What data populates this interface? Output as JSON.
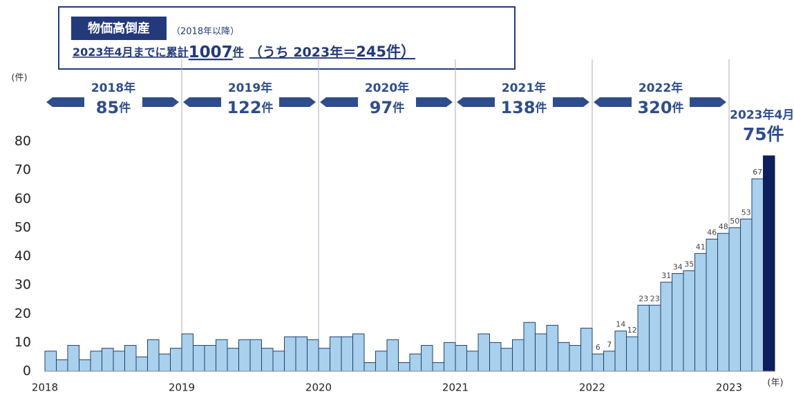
{
  "chart_data": {
    "type": "bar",
    "header": {
      "badge": "物価高倒産",
      "note": "（2018年以降）",
      "summary": [
        "2023年4月までに累計",
        "1007",
        "件",
        "（うち 2023年＝",
        "245件）"
      ]
    },
    "y_unit": "(件)",
    "x_unit": "(年)",
    "categories": [
      null,
      null,
      null,
      null,
      null,
      null,
      null,
      null,
      null,
      null,
      null,
      null,
      null,
      null,
      null,
      null,
      null,
      null,
      null,
      null,
      null,
      null,
      null,
      null,
      null,
      null,
      null,
      null,
      null,
      null,
      null,
      null,
      null,
      null,
      null,
      null,
      null,
      null,
      null,
      null,
      null,
      null,
      null,
      null,
      null,
      null,
      null,
      null,
      null,
      null,
      null,
      null,
      null,
      null,
      null,
      null,
      null,
      null,
      null,
      null,
      null,
      null,
      null,
      null
    ],
    "series": [
      {
        "color": "#a9d0ec",
        "highlight_color": "#0d1f5c",
        "values": [
          7,
          4,
          9,
          4,
          7,
          8,
          7,
          9,
          5,
          11,
          6,
          8,
          13,
          9,
          9,
          11,
          8,
          11,
          11,
          8,
          7,
          12,
          12,
          11,
          8,
          12,
          12,
          13,
          3,
          7,
          11,
          3,
          6,
          9,
          3,
          10,
          9,
          7,
          13,
          10,
          8,
          11,
          17,
          13,
          16,
          10,
          9,
          15,
          6,
          7,
          14,
          12,
          23,
          23,
          31,
          34,
          35,
          41,
          46,
          48,
          50,
          53,
          67,
          75
        ],
        "value_labels": [
          null,
          null,
          null,
          null,
          null,
          null,
          null,
          null,
          null,
          null,
          null,
          null,
          null,
          null,
          null,
          null,
          null,
          null,
          null,
          null,
          null,
          null,
          null,
          null,
          null,
          null,
          null,
          null,
          null,
          null,
          null,
          null,
          null,
          null,
          null,
          null,
          null,
          null,
          null,
          null,
          null,
          null,
          null,
          null,
          null,
          null,
          null,
          null,
          "6",
          "7",
          "14",
          "12",
          "23",
          "23",
          "31",
          "34",
          "35",
          "41",
          "46",
          "48",
          "50",
          "53",
          "67",
          "75件"
        ]
      }
    ],
    "highlight_note": "2023年4月",
    "ylim": [
      0,
      80
    ],
    "yticks": [
      0,
      10,
      20,
      30,
      40,
      50,
      60,
      70,
      80
    ],
    "xticks": [
      {
        "value": 0,
        "label": "2018"
      },
      {
        "value": 12,
        "label": "2019"
      },
      {
        "value": 24,
        "label": "2020"
      },
      {
        "value": 36,
        "label": "2021"
      },
      {
        "value": 48,
        "label": "2022"
      },
      {
        "value": 60,
        "label": "2023"
      }
    ],
    "year_summaries": [
      {
        "year": "2018年",
        "count": "85",
        "unit": "件"
      },
      {
        "year": "2019年",
        "count": "122",
        "unit": "件"
      },
      {
        "year": "2020年",
        "count": "97",
        "unit": "件"
      },
      {
        "year": "2021年",
        "count": "138",
        "unit": "件"
      },
      {
        "year": "2022年",
        "count": "320",
        "unit": "件"
      }
    ]
  }
}
